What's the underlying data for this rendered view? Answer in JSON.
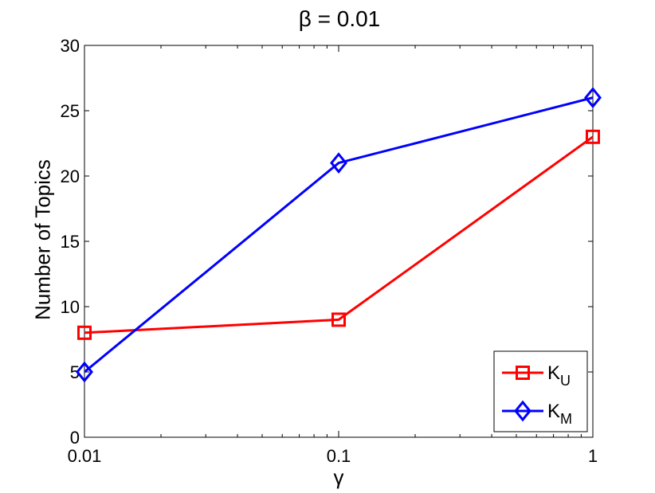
{
  "chart_data": {
    "type": "line",
    "title": "β = 0.01",
    "xlabel": "γ",
    "ylabel": "Number of Topics",
    "x": [
      0.01,
      0.1,
      1
    ],
    "x_scale": "log",
    "x_tick_labels": [
      "0.01",
      "0.1",
      "1"
    ],
    "ylim": [
      0,
      30
    ],
    "y_ticks": [
      0,
      5,
      10,
      15,
      20,
      25,
      30
    ],
    "grid": false,
    "legend_position": "bottom-right",
    "series": [
      {
        "name": "K",
        "subscript": "U",
        "values": [
          8,
          9,
          23
        ],
        "color": "#ff0000",
        "marker": "square"
      },
      {
        "name": "K",
        "subscript": "M",
        "values": [
          5,
          21,
          26
        ],
        "color": "#0000ff",
        "marker": "diamond"
      }
    ]
  }
}
